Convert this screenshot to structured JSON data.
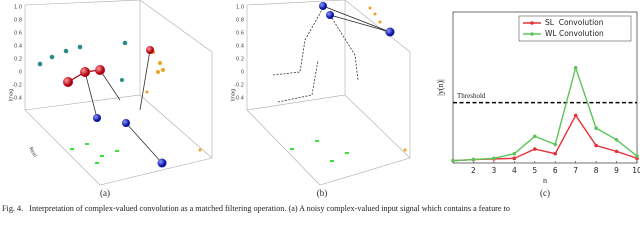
{
  "panels": [
    {
      "label": "(a)",
      "z_label": "Imag",
      "x_label": "Real",
      "zticks": [
        "1.0",
        "0.8",
        "0.6",
        "0.4",
        "0.2",
        "0",
        "-0.2",
        "-0.4"
      ]
    },
    {
      "label": "(b)",
      "z_label": "Imag",
      "zticks": [
        "1.0",
        "0.8",
        "0.6",
        "0.4",
        "0.2",
        "0",
        "-0.2",
        "-0.4"
      ]
    }
  ],
  "chart_data": {
    "type": "line",
    "label": "(c)",
    "x_label": "n",
    "y_label": "|y(n)|",
    "x": [
      1,
      2,
      3,
      4,
      5,
      6,
      7,
      8,
      9,
      10
    ],
    "series": [
      {
        "name": "SL  Convolution",
        "color": "#e8303a",
        "values": [
          0.2,
          0.3,
          0.35,
          0.4,
          1.2,
          0.8,
          4.1,
          1.5,
          1.0,
          0.4
        ]
      },
      {
        "name": "WL Convolution",
        "color": "#5ec45a",
        "values": [
          0.2,
          0.3,
          0.4,
          0.8,
          2.3,
          1.6,
          8.2,
          3.0,
          2.0,
          0.6
        ]
      }
    ],
    "threshold": {
      "value": 5.2,
      "label": "Threshold"
    },
    "xlim": [
      1,
      10
    ],
    "xticks": [
      2,
      3,
      4,
      5,
      6,
      7,
      8,
      9,
      10
    ],
    "ylim": [
      0,
      13
    ],
    "legend": "upper right",
    "grid": false
  },
  "caption": "Fig. 4.   Interpretation of complex-valued convolution as a matched filtering operation. (a) A noisy complex-valued input signal which contains a feature to"
}
